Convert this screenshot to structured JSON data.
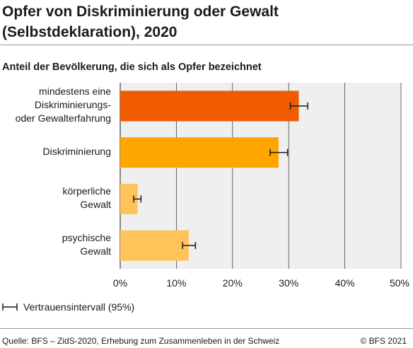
{
  "header": {
    "title_line1": "Opfer von Diskriminierung oder Gewalt",
    "title_line2": "(Selbstdeklaration), 2020",
    "subtitle": "Anteil der Bevölkerung, die sich als Opfer bezeichnet"
  },
  "chart_data": {
    "type": "bar",
    "orientation": "horizontal",
    "categories": [
      [
        "mindestens eine",
        "Diskriminierungs-",
        "oder Gewalterfahrung"
      ],
      [
        "Diskriminierung"
      ],
      [
        "körperliche",
        "Gewalt"
      ],
      [
        "psychische",
        "Gewalt"
      ]
    ],
    "values": [
      31.8,
      28.2,
      3.1,
      12.2
    ],
    "ci_low": [
      30.3,
      26.7,
      2.4,
      11.1
    ],
    "ci_high": [
      33.4,
      29.8,
      3.7,
      13.4
    ],
    "colors": [
      "#f05a00",
      "#ffa500",
      "#ffc35a",
      "#ffc35a"
    ],
    "xlim": [
      0,
      50
    ],
    "xticks": [
      "0%",
      "10%",
      "20%",
      "30%",
      "40%",
      "50%"
    ],
    "grid": true,
    "legend": "bottom-left"
  },
  "legend": {
    "ci_label": "Vertrauensintervall (95%)"
  },
  "footer": {
    "source": "Quelle: BFS – ZidS-2020, Erhebung zum Zusammenleben in der Schweiz",
    "copyright": "© BFS 2021"
  },
  "style": {
    "plot_bg": "#efefef",
    "grid": "#444444",
    "errorbar": "#1a1a1a"
  }
}
